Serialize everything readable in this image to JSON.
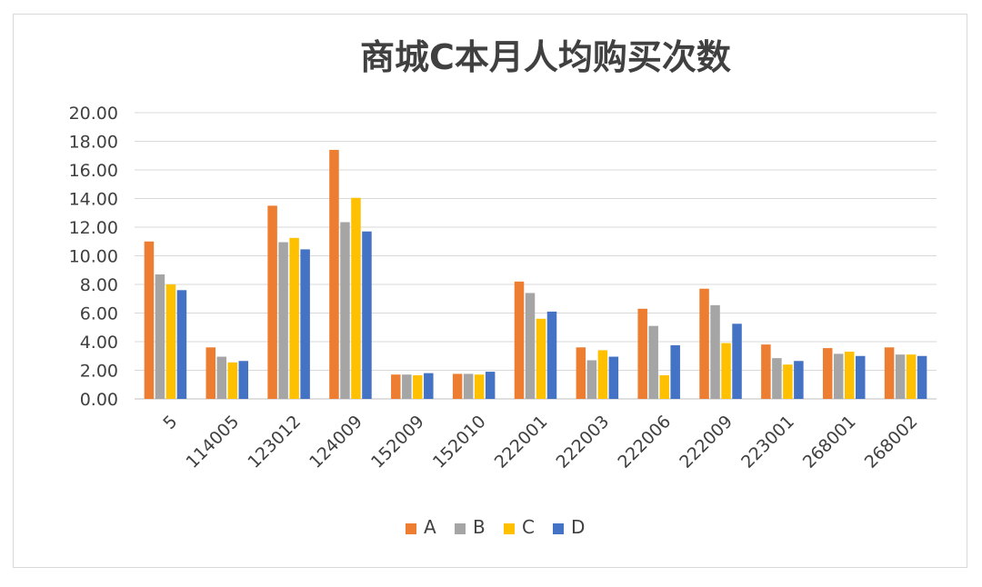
{
  "chart_data": {
    "type": "bar",
    "title": "商城C本月人均购买次数",
    "xlabel": "",
    "ylabel": "",
    "ylim": [
      0,
      20
    ],
    "y_ticks": [
      "0.00",
      "2.00",
      "4.00",
      "6.00",
      "8.00",
      "10.00",
      "12.00",
      "14.00",
      "16.00",
      "18.00",
      "20.00"
    ],
    "categories": [
      "5",
      "114005",
      "123012",
      "124009",
      "152009",
      "152010",
      "222001",
      "222003",
      "222006",
      "222009",
      "223001",
      "268001",
      "268002"
    ],
    "series": [
      {
        "name": "A",
        "color": "#ED7D31",
        "values": [
          11.0,
          3.6,
          13.5,
          17.4,
          1.7,
          1.75,
          8.2,
          3.6,
          6.3,
          7.7,
          3.8,
          3.55,
          3.6
        ]
      },
      {
        "name": "B",
        "color": "#A5A5A5",
        "values": [
          8.7,
          2.95,
          10.95,
          12.35,
          1.7,
          1.75,
          7.4,
          2.7,
          5.1,
          6.55,
          2.85,
          3.15,
          3.1
        ]
      },
      {
        "name": "C",
        "color": "#FFC000",
        "values": [
          8.0,
          2.55,
          11.25,
          14.05,
          1.65,
          1.7,
          5.6,
          3.4,
          1.65,
          3.9,
          2.4,
          3.3,
          3.1
        ]
      },
      {
        "name": "D",
        "color": "#4472C4",
        "values": [
          7.6,
          2.65,
          10.45,
          11.7,
          1.8,
          1.9,
          6.1,
          2.95,
          3.75,
          5.25,
          2.65,
          3.0,
          3.0
        ]
      }
    ],
    "grid": true,
    "legend": "bottom"
  }
}
